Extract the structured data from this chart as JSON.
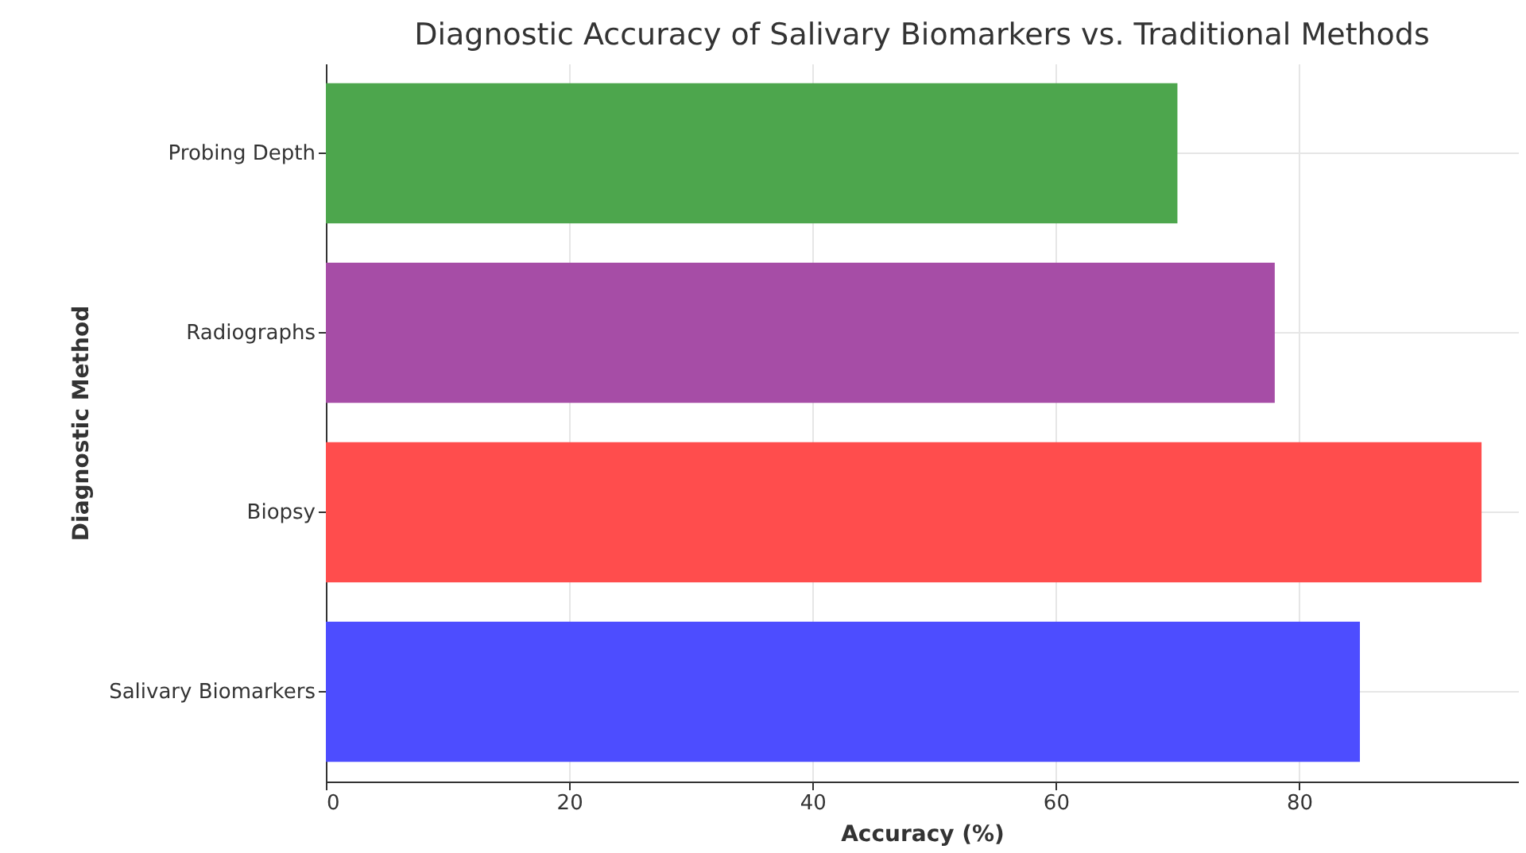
{
  "chart_data": {
    "type": "bar",
    "orientation": "horizontal",
    "title": "Diagnostic Accuracy of Salivary Biomarkers vs. Traditional Methods",
    "xlabel": "Accuracy (%)",
    "ylabel": "Diagnostic Method",
    "categories": [
      "Probing Depth",
      "Radiographs",
      "Biopsy",
      "Salivary Biomarkers"
    ],
    "values": [
      70,
      78,
      95,
      85
    ],
    "colors": [
      "#4da64d",
      "#a64da6",
      "#ff4d4d",
      "#4d4dff"
    ],
    "xlim": [
      0,
      98
    ],
    "xticks": [
      0,
      20,
      40,
      60,
      80
    ],
    "grid": true
  }
}
